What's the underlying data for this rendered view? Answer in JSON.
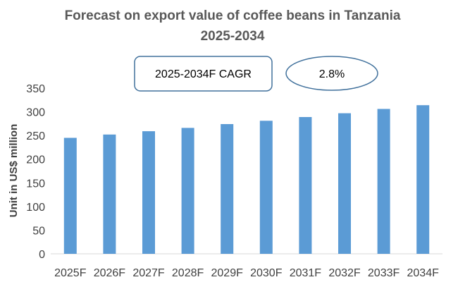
{
  "chart_data": {
    "type": "bar",
    "title": [
      "Forecast on export value of coffee beans in Tanzania",
      "2025-2034"
    ],
    "xlabel": "",
    "ylabel": "Unit in US$ million",
    "categories": [
      "2025F",
      "2026F",
      "2027F",
      "2028F",
      "2029F",
      "2030F",
      "2031F",
      "2032F",
      "2033F",
      "2034F"
    ],
    "values": [
      245,
      252,
      259,
      266,
      274,
      281,
      289,
      297,
      306,
      314
    ],
    "ylim": [
      0,
      350
    ],
    "yticks": [
      "0",
      "50",
      "100",
      "150",
      "200",
      "250",
      "300",
      "350"
    ],
    "grid": false,
    "bar_color": "#5B9BD5",
    "annotations": {
      "cagr_label": "2025-2034F CAGR",
      "cagr_value": "2.8%",
      "box_stroke": "#41719C"
    }
  }
}
